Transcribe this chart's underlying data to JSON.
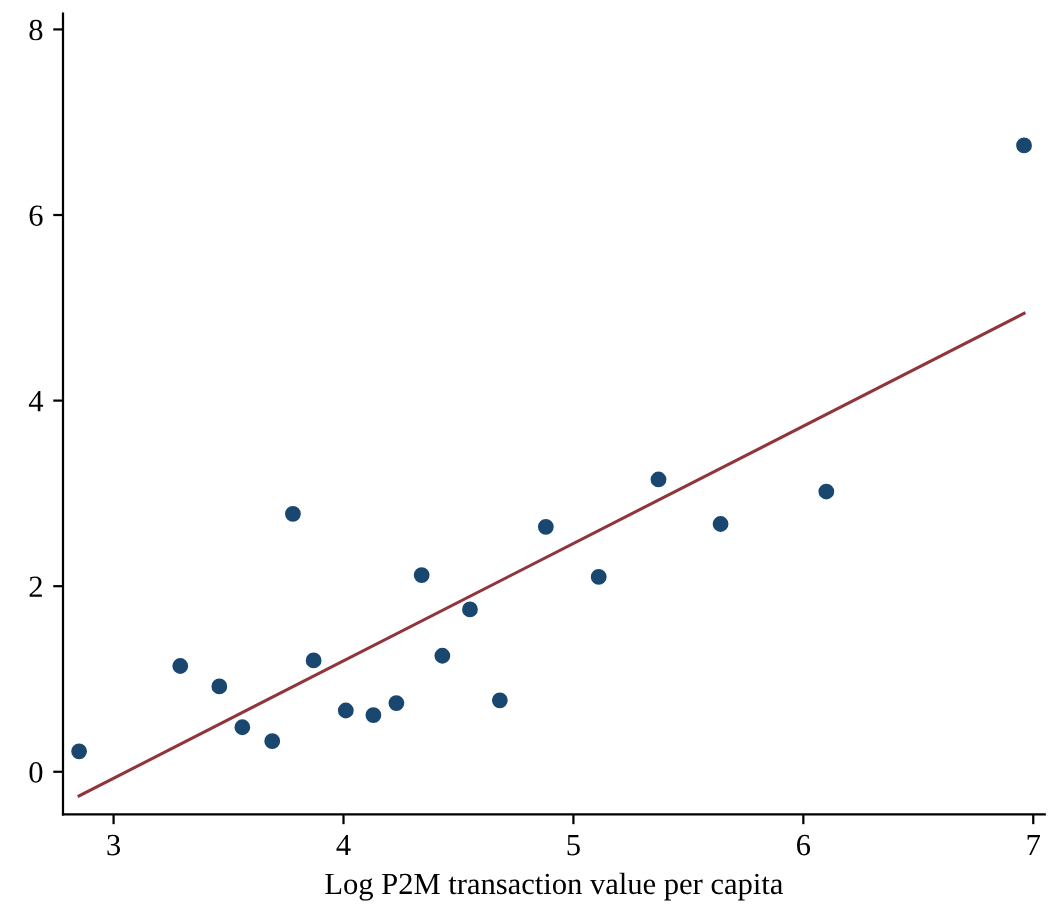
{
  "chart_data": {
    "type": "scatter",
    "xlabel": "Log P2M transaction value per capita",
    "xlim": [
      2.78,
      7.05
    ],
    "ylim": [
      -0.46,
      8.17
    ],
    "xticks": [
      3,
      4,
      5,
      6,
      7
    ],
    "yticks": [
      0,
      2,
      4,
      6,
      8
    ],
    "grid": false,
    "marker": "circle",
    "series": [
      {
        "color": "#1a476f",
        "x": [
          2.85,
          3.29,
          3.46,
          3.56,
          3.69,
          3.78,
          3.87,
          4.01,
          4.13,
          4.23,
          4.34,
          4.43,
          4.55,
          4.68,
          4.88,
          5.11,
          5.37,
          5.64,
          6.1,
          6.96
        ],
        "values": [
          0.22,
          1.14,
          0.92,
          0.48,
          0.33,
          2.78,
          1.2,
          0.66,
          0.61,
          0.74,
          2.12,
          1.25,
          1.75,
          0.77,
          2.64,
          2.1,
          3.15,
          2.67,
          3.02,
          6.75
        ]
      },
      {
        "type": "line",
        "marker": "none",
        "color": "#90353b",
        "x": [
          2.85,
          6.96
        ],
        "values": [
          -0.26,
          4.94
        ]
      }
    ]
  }
}
